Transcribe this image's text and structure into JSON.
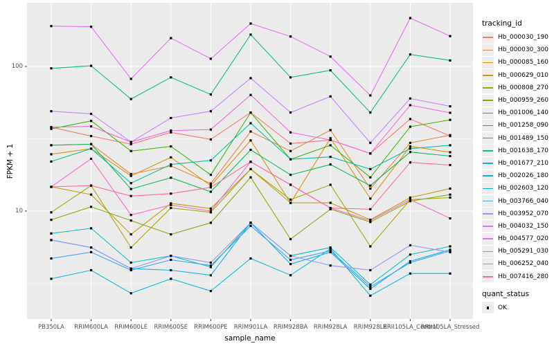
{
  "figure": {
    "xlabel": "sample_name",
    "ylabel": "FPKM + 1",
    "legend_title": "tracking_id",
    "quant_legend_title": "quant_status",
    "quant_legend_value": "OK",
    "panel_bg": "#ebebeb",
    "grid_color": "#ffffff",
    "axis_text_color": "#4d4d4d",
    "tick_color": "#333333",
    "marker_color": "#000000",
    "legend_key_bg": "#ededed"
  },
  "chart_data": {
    "type": "line",
    "title": "",
    "xlabel": "sample_name",
    "ylabel": "FPKM + 1",
    "y_scale": "log10",
    "ylim": [
      1.8,
      275
    ],
    "yticks": [
      100,
      10
    ],
    "minor_gridlines": [
      31.623,
      3.1623
    ],
    "grid": true,
    "legend_position": "right",
    "marker": "black-square",
    "quant_status": {
      "label": "OK",
      "marker": "square",
      "color": "#000000"
    },
    "categories": [
      "PB350LA",
      "RRIM600LA",
      "RRIM600LE",
      "RRIM600SE",
      "RRIM600PE",
      "RRIM901LA",
      "RRIM928BA",
      "RRIM928LA",
      "RRIM928LE",
      "RRII105LA_Control",
      "RRII105LA_Stressed"
    ],
    "series": [
      {
        "name": "Hb_000030_190",
        "color": "#F8766D",
        "values": [
          38,
          33,
          29,
          35,
          31.3,
          48,
          29.3,
          31,
          25,
          43.3,
          33
        ]
      },
      {
        "name": "Hb_000030_300",
        "color": "#EA8331",
        "values": [
          28.5,
          29,
          18,
          20.5,
          15.5,
          35.5,
          26,
          36.3,
          14.3,
          29.6,
          33.5
        ]
      },
      {
        "name": "Hb_000085_160",
        "color": "#D89000",
        "values": [
          24.7,
          27,
          17.5,
          23.5,
          15,
          30.8,
          11.4,
          31.9,
          12.2,
          28,
          25.5
        ]
      },
      {
        "name": "Hb_000629_010",
        "color": "#C09B00",
        "values": [
          14.7,
          13,
          6.9,
          11.3,
          10.4,
          19.5,
          11.4,
          11.4,
          8.7,
          12.4,
          14.3
        ]
      },
      {
        "name": "Hb_000808_270",
        "color": "#A3A500",
        "values": [
          9.8,
          15,
          5.6,
          10.5,
          9.8,
          19.5,
          12,
          15.2,
          5.7,
          12,
          12.4
        ]
      },
      {
        "name": "Hb_000959_260",
        "color": "#7CAE00",
        "values": [
          8.7,
          10.7,
          8.6,
          6.9,
          8.3,
          17.1,
          6.4,
          10.3,
          8.4,
          11.7,
          13
        ]
      },
      {
        "name": "Hb_001006_140",
        "color": "#39B600",
        "values": [
          37,
          42,
          26,
          28,
          17.8,
          48,
          22.8,
          28.5,
          17.1,
          38.3,
          42.7
        ]
      },
      {
        "name": "Hb_001258_090",
        "color": "#00BB4E",
        "values": [
          28.5,
          29,
          14.2,
          17,
          13.6,
          26.5,
          17.8,
          21,
          15,
          25.6,
          24
        ]
      },
      {
        "name": "Hb_001489_150",
        "color": "#00BF7D",
        "values": [
          97,
          101,
          59.5,
          84,
          64,
          166,
          84,
          94,
          48,
          121,
          110
        ]
      },
      {
        "name": "Hb_001638_170",
        "color": "#00C1A3",
        "values": [
          22,
          27,
          15.6,
          21,
          22.4,
          40.5,
          22.8,
          23.7,
          19.5,
          27,
          28.5
        ]
      },
      {
        "name": "Hb_001677_210",
        "color": "#00BFC4",
        "values": [
          7,
          7.6,
          4.4,
          4.9,
          4.1,
          8.3,
          4.9,
          5.6,
          3.1,
          5,
          5.7
        ]
      },
      {
        "name": "Hb_002026_180",
        "color": "#00BAE0",
        "values": [
          3.4,
          3.9,
          2.7,
          3.4,
          2.8,
          4.7,
          3.6,
          5.5,
          2.6,
          3.7,
          3.7
        ]
      },
      {
        "name": "Hb_002603_120",
        "color": "#00B0F6",
        "values": [
          6.3,
          5.6,
          4,
          3.9,
          3.6,
          8.3,
          4.3,
          5.2,
          2.9,
          4.5,
          5.4
        ]
      },
      {
        "name": "Hb_003766_040",
        "color": "#35A2FF",
        "values": [
          4.7,
          5.2,
          3.9,
          4.6,
          4.2,
          7.9,
          4.6,
          5.3,
          3,
          4.4,
          5.3
        ]
      },
      {
        "name": "Hb_003952_070",
        "color": "#9590FF",
        "values": [
          6.3,
          5.6,
          4,
          4.9,
          4.4,
          8.3,
          4.9,
          4.2,
          3.9,
          5.8,
          5.2
        ]
      },
      {
        "name": "Hb_004032_150",
        "color": "#C77CFF",
        "values": [
          49,
          47,
          30,
          44,
          49,
          83,
          48,
          62,
          29.6,
          60,
          53
        ]
      },
      {
        "name": "Hb_004577_020",
        "color": "#E76BF3",
        "values": [
          190,
          188,
          82,
          157,
          113,
          198,
          161,
          117,
          63,
          216,
          162
        ]
      },
      {
        "name": "Hb_005291_030",
        "color": "#FA62DB",
        "values": [
          38,
          38.5,
          30,
          36,
          36.6,
          63.5,
          35,
          31,
          25,
          54,
          47.8
        ]
      },
      {
        "name": "Hb_006252_040",
        "color": "#FF61CC",
        "values": [
          14.7,
          23,
          9.4,
          11,
          10,
          21.9,
          15.2,
          10.5,
          8.6,
          12,
          8.9
        ]
      },
      {
        "name": "Hb_007416_280",
        "color": "#FF6A98",
        "values": [
          14.7,
          15,
          12.7,
          13.2,
          14.6,
          21.9,
          15.2,
          10.5,
          10.3,
          21.7,
          20.8
        ]
      }
    ]
  }
}
